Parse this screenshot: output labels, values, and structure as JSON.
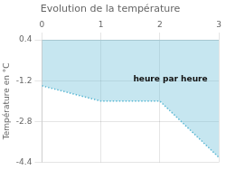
{
  "chart_data": {
    "type": "line",
    "title": "Evolution de la température",
    "ylabel": "Température en °C",
    "x": [
      0,
      1,
      2,
      3
    ],
    "values": [
      -1.4,
      -2.0,
      -2.0,
      -4.2
    ],
    "fill_top": 0.4,
    "color": "#5bb8d4",
    "line_style": "dotted",
    "xlim": [
      0,
      3
    ],
    "ylim": [
      -4.4,
      0.4
    ],
    "xticks": [
      0,
      1,
      2,
      3
    ],
    "yticks": [
      0.4,
      -1.2,
      -2.8,
      -4.4
    ],
    "grid": true,
    "annotations": [
      {
        "text": "heure par heure",
        "x": 1.55,
        "y": -1.3
      }
    ]
  }
}
